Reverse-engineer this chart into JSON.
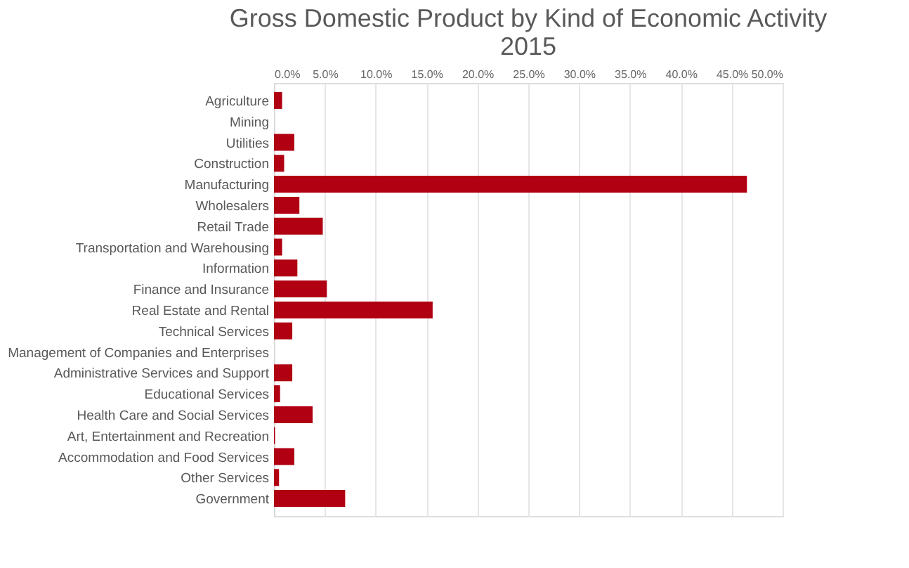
{
  "chart_data": {
    "type": "bar",
    "orientation": "horizontal",
    "title": "Gross Domestic Product by Kind of Economic Activity\n2015",
    "categories": [
      "Agriculture",
      "Mining",
      "Utilities",
      "Construction",
      "Manufacturing",
      "Wholesalers",
      "Retail Trade",
      "Transportation and Warehousing",
      "Information",
      "Finance and Insurance",
      "Real Estate and Rental",
      "Technical Services",
      "Management of Companies and Enterprises",
      "Administrative Services and Support",
      "Educational Services",
      "Health Care and Social Services",
      "Art, Entertainment and Recreation",
      "Accommodation and Food Services",
      "Other Services",
      "Government"
    ],
    "values": [
      0.8,
      0,
      2.0,
      1.0,
      46.5,
      2.5,
      4.8,
      0.8,
      2.3,
      5.2,
      15.6,
      1.8,
      0,
      1.8,
      0.6,
      3.8,
      0.1,
      2.0,
      0.5,
      7.0
    ],
    "color": "#b00012",
    "xlim": [
      0,
      50
    ],
    "xticks": [
      {
        "value": 0,
        "label": "0.0%"
      },
      {
        "value": 5,
        "label": "5.0%"
      },
      {
        "value": 10,
        "label": "10.0%"
      },
      {
        "value": 15,
        "label": "15.0%"
      },
      {
        "value": 20,
        "label": "20.0%"
      },
      {
        "value": 25,
        "label": "25.0%"
      },
      {
        "value": 30,
        "label": "30.0%"
      },
      {
        "value": 35,
        "label": "35.0%"
      },
      {
        "value": 40,
        "label": "40.0%"
      },
      {
        "value": 45,
        "label": "45.0%"
      },
      {
        "value": 50,
        "label": "50.0%"
      }
    ],
    "grid": "x"
  }
}
